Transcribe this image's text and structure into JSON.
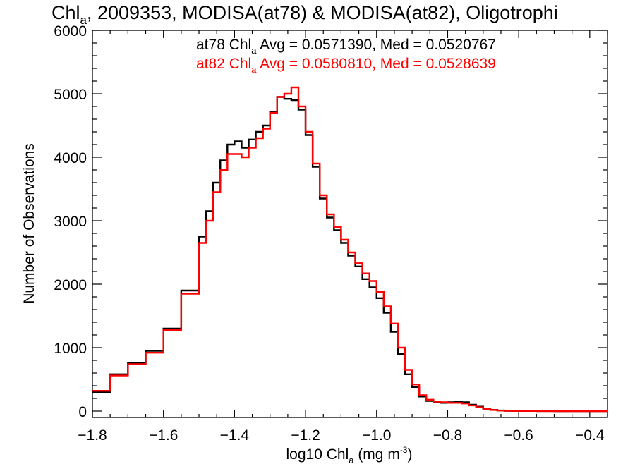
{
  "chart_data": {
    "type": "line",
    "title": {
      "prefix": "Chl",
      "sub": "a",
      "rest": ", 2009353, MODISA(at78) & MODISA(at82), Oligotrophi"
    },
    "xlabel": {
      "prefix": "log10 Chl",
      "sub": "a",
      "mid": " (mg m",
      "sup": "-3",
      "end": ")"
    },
    "ylabel": "Number of Observations",
    "xlim": [
      -1.8,
      -0.35
    ],
    "ylim": [
      -100,
      6000
    ],
    "xticks": [
      {
        "value": -1.8,
        "label": "−1.8"
      },
      {
        "value": -1.6,
        "label": "−1.6"
      },
      {
        "value": -1.4,
        "label": "−1.4"
      },
      {
        "value": -1.2,
        "label": "−1.2"
      },
      {
        "value": -1.0,
        "label": "−1.0"
      },
      {
        "value": -0.8,
        "label": "−0.8"
      },
      {
        "value": -0.6,
        "label": "−0.6"
      },
      {
        "value": -0.4,
        "label": "−0.4"
      }
    ],
    "yticks": [
      {
        "value": 0,
        "label": "0"
      },
      {
        "value": 1000,
        "label": "1000"
      },
      {
        "value": 2000,
        "label": "2000"
      },
      {
        "value": 3000,
        "label": "3000"
      },
      {
        "value": 4000,
        "label": "4000"
      },
      {
        "value": 5000,
        "label": "5000"
      },
      {
        "value": 6000,
        "label": "6000"
      }
    ],
    "grid": false,
    "legend": [
      {
        "prefix": "at78 Chl",
        "sub": "a",
        "stats": " Avg = 0.0571390, Med = 0.0520767",
        "color": "#000000"
      },
      {
        "prefix": "at82 Chl",
        "sub": "a",
        "stats": " Avg = 0.0580810, Med = 0.0528639",
        "color": "#ff0000"
      }
    ],
    "legend_position": "top-center",
    "series": [
      {
        "color": "#000000",
        "x": [
          -1.8,
          -1.75,
          -1.7,
          -1.65,
          -1.6,
          -1.55,
          -1.5,
          -1.48,
          -1.46,
          -1.44,
          -1.42,
          -1.4,
          -1.38,
          -1.36,
          -1.34,
          -1.32,
          -1.3,
          -1.28,
          -1.26,
          -1.24,
          -1.22,
          -1.2,
          -1.18,
          -1.16,
          -1.14,
          -1.12,
          -1.1,
          -1.08,
          -1.06,
          -1.04,
          -1.02,
          -1.0,
          -0.98,
          -0.96,
          -0.94,
          -0.92,
          -0.9,
          -0.88,
          -0.86,
          -0.84,
          -0.82,
          -0.8,
          -0.78,
          -0.76,
          -0.74,
          -0.72,
          -0.7,
          -0.68,
          -0.66,
          -0.64,
          -0.62,
          -0.6,
          -0.55,
          -0.5,
          -0.45,
          -0.4,
          -0.35
        ],
        "y": [
          300,
          580,
          760,
          950,
          1300,
          1900,
          2750,
          3150,
          3600,
          3950,
          4200,
          4250,
          4150,
          4280,
          4400,
          4500,
          4720,
          4950,
          4920,
          4900,
          4750,
          4350,
          3850,
          3350,
          3050,
          2850,
          2650,
          2450,
          2280,
          2080,
          1950,
          1780,
          1550,
          1250,
          900,
          580,
          380,
          230,
          160,
          140,
          130,
          140,
          150,
          140,
          100,
          70,
          40,
          20,
          10,
          5,
          3,
          2,
          1,
          0,
          0,
          0,
          0
        ]
      },
      {
        "color": "#ff0000",
        "x": [
          -1.8,
          -1.75,
          -1.7,
          -1.65,
          -1.6,
          -1.55,
          -1.5,
          -1.48,
          -1.46,
          -1.44,
          -1.42,
          -1.4,
          -1.38,
          -1.36,
          -1.34,
          -1.32,
          -1.3,
          -1.28,
          -1.26,
          -1.24,
          -1.22,
          -1.2,
          -1.18,
          -1.16,
          -1.14,
          -1.12,
          -1.1,
          -1.08,
          -1.06,
          -1.04,
          -1.02,
          -1.0,
          -0.98,
          -0.96,
          -0.94,
          -0.92,
          -0.9,
          -0.88,
          -0.86,
          -0.84,
          -0.82,
          -0.8,
          -0.78,
          -0.76,
          -0.74,
          -0.72,
          -0.7,
          -0.68,
          -0.66,
          -0.64,
          -0.62,
          -0.6,
          -0.55,
          -0.5,
          -0.45,
          -0.4,
          -0.35
        ],
        "y": [
          320,
          560,
          740,
          920,
          1280,
          1850,
          2650,
          3000,
          3450,
          3800,
          4050,
          4050,
          4000,
          4150,
          4300,
          4450,
          4700,
          4950,
          5000,
          5100,
          4800,
          4400,
          3900,
          3400,
          3100,
          2900,
          2700,
          2500,
          2330,
          2170,
          2050,
          1880,
          1650,
          1380,
          1000,
          650,
          420,
          250,
          180,
          150,
          140,
          130,
          130,
          120,
          90,
          60,
          35,
          18,
          9,
          5,
          3,
          2,
          1,
          0,
          0,
          0,
          0
        ]
      }
    ]
  }
}
